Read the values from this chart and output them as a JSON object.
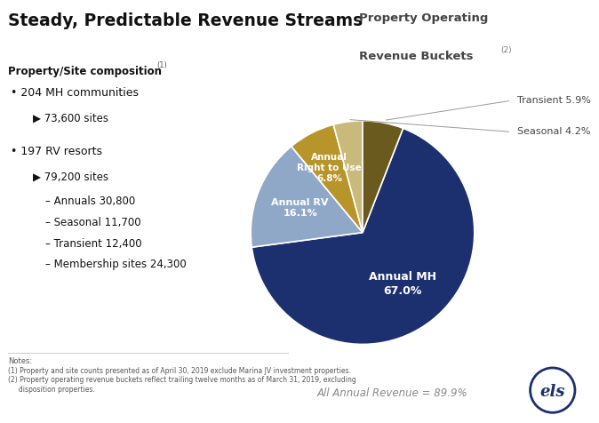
{
  "title": "Steady, Predictable Revenue Streams",
  "pie_title_line1": "Property Operating",
  "pie_title_line2": "Revenue Buckets",
  "pie_title_superscript": "(2)",
  "background_color": "#ffffff",
  "slices": [
    {
      "label": "Annual MH",
      "pct": 67.0,
      "color": "#1c3070"
    },
    {
      "label": "Annual RV",
      "pct": 16.1,
      "color": "#8fa8c8"
    },
    {
      "label": "Annual\nRight to Use",
      "pct": 6.8,
      "color": "#b8952a"
    },
    {
      "label": "Seasonal",
      "pct": 4.2,
      "color": "#c9b97a"
    },
    {
      "label": "Transient",
      "pct": 5.9,
      "color": "#6b5a1e"
    }
  ],
  "label_texts_inside": [
    "Annual MH\n67.0%",
    "Annual RV\n16.1%",
    "Annual\nRight to Use\n6.8%"
  ],
  "label_texts_outside": [
    "Seasonal 4.2%",
    "Transient 5.9%"
  ],
  "annual_revenue_label": "All Annual Revenue = 89.9%",
  "notes": [
    "Notes:",
    "(1) Property and site counts presented as of April 30, 2019 exclude Marina JV investment properties.",
    "(2) Property operating revenue buckets reflect trailing twelve months as of March 31, 2019, excluding",
    "     disposition properties."
  ],
  "left_text_title": "Property/Site composition",
  "left_text_title_super": "(1)",
  "left_bullets": [
    {
      "text": "204 MH communities",
      "indent": 0,
      "bullet": "•"
    },
    {
      "text": "73,600 sites",
      "indent": 1,
      "bullet": "▶"
    },
    {
      "text": "197 RV resorts",
      "indent": 0,
      "bullet": "•"
    },
    {
      "text": "79,200 sites",
      "indent": 1,
      "bullet": "▶"
    },
    {
      "text": "Annuals 30,800",
      "indent": 2,
      "bullet": "–"
    },
    {
      "text": "Seasonal 11,700",
      "indent": 2,
      "bullet": "–"
    },
    {
      "text": "Transient 12,400",
      "indent": 2,
      "bullet": "–"
    },
    {
      "text": "Membership sites 24,300",
      "indent": 2,
      "bullet": "–"
    }
  ],
  "logo_color": "#1c3070"
}
